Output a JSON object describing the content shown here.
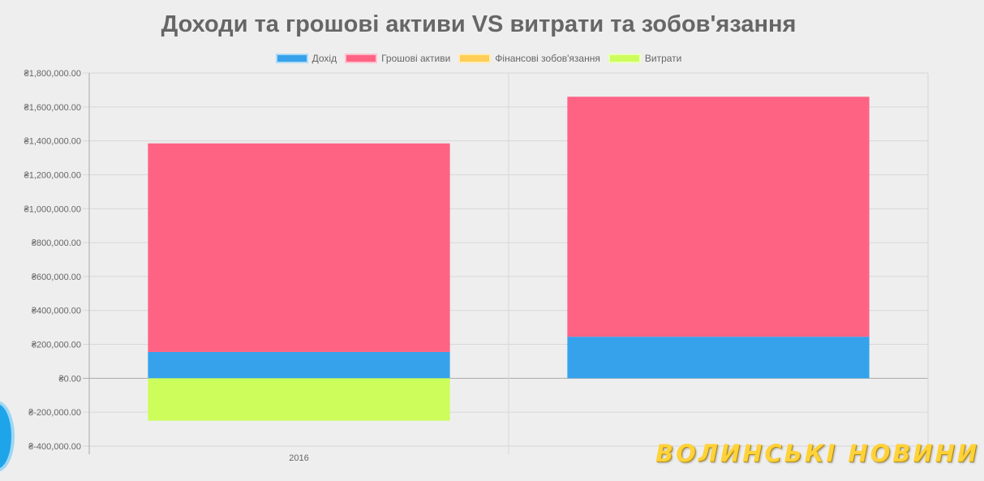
{
  "chart_data": {
    "type": "bar",
    "stacked": true,
    "title": "Доходи та грошові активи VS витрати та зобов'язання",
    "categories": [
      "2016",
      ""
    ],
    "series": [
      {
        "name": "Дохід",
        "color": "#36a2eb",
        "values": [
          155000,
          245000
        ]
      },
      {
        "name": "Грошові активи",
        "color": "#ff6384",
        "values": [
          1230000,
          1415000
        ]
      },
      {
        "name": "Фінансові зобов'язання",
        "color": "#ffce56",
        "values": [
          0,
          0
        ]
      },
      {
        "name": "Витрати",
        "color": "#cdfd5a",
        "values": [
          -250000,
          0
        ]
      }
    ],
    "ylim": [
      -400000,
      1800000
    ],
    "yticks": [
      "₴1,800,000.00",
      "₴1,600,000.00",
      "₴1,400,000.00",
      "₴1,200,000.00",
      "₴1,000,000.00",
      "₴800,000.00",
      "₴600,000.00",
      "₴400,000.00",
      "₴200,000.00",
      "₴0.00",
      "₴-200,000.00",
      "₴-400,000.00"
    ],
    "grid": true,
    "legend_position": "top"
  },
  "watermark": {
    "text": "ВОЛИНСЬКІ НОВИНИ",
    "icon": "brand-logo"
  }
}
